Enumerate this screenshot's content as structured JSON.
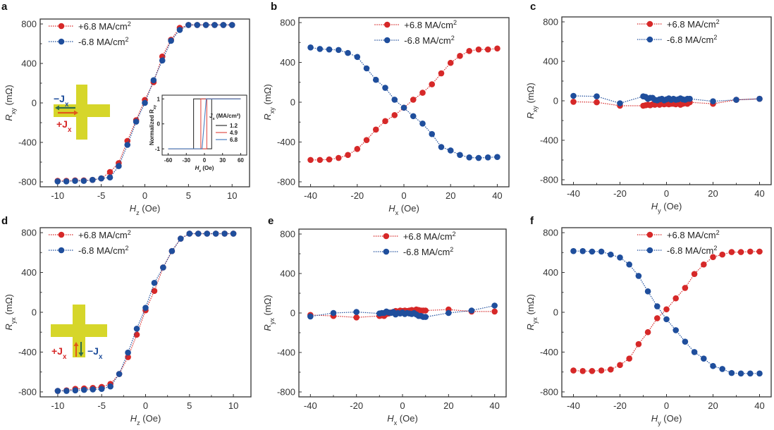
{
  "figure": {
    "colors": {
      "pos": "#d62828",
      "neg": "#1f4e9c",
      "axis": "#333333",
      "cross": "#d6d62a",
      "inset_1_2": "#333333",
      "inset_4_9": "#e0504a",
      "inset_6_8": "#4a7fc0",
      "arrow_green": "#2f6b4f",
      "arrow_orange": "#e05a1a"
    },
    "schematic_a": {
      "minus_label": "−J",
      "minus_sub": "x",
      "plus_label": "+J",
      "plus_sub": "x"
    },
    "schematic_d": {
      "plus_label": "+J",
      "plus_sub": "x",
      "minus_label": "−J",
      "minus_sub": "x"
    }
  },
  "chart_data": [
    {
      "id": "a",
      "type": "line",
      "panel_label": "a",
      "xlabel_main": "H",
      "xlabel_sub": "z",
      "xlabel_unit": " (Oe)",
      "ylabel_main": "R",
      "ylabel_sub": "xy",
      "ylabel_unit": " (mΩ)",
      "xlim": [
        -12,
        12
      ],
      "ylim": [
        -850,
        850
      ],
      "xticks": [
        -10,
        -5,
        0,
        5,
        10
      ],
      "yticks": [
        -800,
        -400,
        0,
        400,
        800
      ],
      "legend": [
        "+6.8 MA/cm",
        "-6.8 MA/cm"
      ],
      "legend_sup": "2",
      "legend_position": "top-left",
      "series": [
        {
          "name": "+6.8 MA/cm2",
          "color_key": "pos",
          "x": [
            -10,
            -9,
            -8,
            -7,
            -6,
            -5,
            -4,
            -3,
            -2,
            -1,
            0,
            1,
            2,
            3,
            4,
            5,
            6,
            7,
            8,
            9,
            10
          ],
          "y": [
            -790,
            -790,
            -785,
            -785,
            -780,
            -765,
            -700,
            -610,
            -385,
            -175,
            30,
            210,
            470,
            640,
            760,
            790,
            790,
            790,
            790,
            790,
            790
          ]
        },
        {
          "name": "-6.8 MA/cm2",
          "color_key": "neg",
          "x": [
            -10,
            -9,
            -8,
            -7,
            -6,
            -5,
            -4,
            -3,
            -2,
            -1,
            0,
            1,
            2,
            3,
            4,
            5,
            6,
            7,
            8,
            9,
            10
          ],
          "y": [
            -795,
            -795,
            -790,
            -790,
            -780,
            -765,
            -755,
            -640,
            -425,
            -190,
            0,
            230,
            430,
            630,
            740,
            790,
            790,
            790,
            790,
            790,
            790
          ]
        }
      ],
      "inset": {
        "xlabel_main": "H",
        "xlabel_sub": "z",
        "xlabel_unit": " (Oe)",
        "ylabel": "Normalized R",
        "ylabel_sub": "xy",
        "xlim": [
          -70,
          70
        ],
        "ylim": [
          -1.25,
          1.15
        ],
        "xticks": [
          -60,
          -30,
          0,
          30,
          60
        ],
        "yticks": [
          -1,
          0,
          1
        ],
        "legend_title": "J",
        "legend_title_sub": "x",
        "legend_title_unit": " (MA/cm²)",
        "series": [
          {
            "name": "1.2",
            "color_key": "inset_1_2",
            "x": [
              -60,
              -18,
              -18,
              12,
              12,
              60,
              12,
              12,
              -18,
              -18,
              -60
            ],
            "y": [
              -1,
              -1,
              1,
              1,
              1,
              1,
              1,
              -1,
              -1,
              -1,
              -1
            ]
          },
          {
            "name": "4.9",
            "color_key": "inset_4_9",
            "x": [
              -60,
              -6,
              -6,
              4,
              4,
              60,
              4,
              4,
              -6,
              -6,
              -60
            ],
            "y": [
              -1,
              -1,
              1,
              1,
              1,
              1,
              1,
              -1,
              -1,
              -1,
              -1
            ]
          },
          {
            "name": "6.8",
            "color_key": "inset_6_8",
            "x": [
              -60,
              -4,
              3,
              60
            ],
            "y": [
              -1,
              -1,
              1,
              1
            ]
          }
        ]
      }
    },
    {
      "id": "b",
      "type": "line",
      "panel_label": "b",
      "xlabel_main": "H",
      "xlabel_sub": "x",
      "xlabel_unit": " (Oe)",
      "ylabel_main": "R",
      "ylabel_sub": "xy",
      "ylabel_unit": " (mΩ)",
      "xlim": [
        -45,
        45
      ],
      "ylim": [
        -850,
        850
      ],
      "xticks": [
        -40,
        -20,
        0,
        20,
        40
      ],
      "yticks": [
        -800,
        -400,
        0,
        400,
        800
      ],
      "legend": [
        "+6.8 MA/cm",
        "-6.8 MA/cm"
      ],
      "legend_sup": "2",
      "legend_position": "top-center",
      "series": [
        {
          "name": "+6.8 MA/cm2",
          "color_key": "pos",
          "x": [
            -40,
            -36,
            -32,
            -28,
            -24,
            -20,
            -16,
            -12,
            -8,
            -4,
            0,
            4,
            8,
            12,
            16,
            20,
            24,
            28,
            32,
            36,
            40
          ],
          "y": [
            -580,
            -580,
            -575,
            -560,
            -530,
            -470,
            -380,
            -275,
            -190,
            -130,
            -55,
            25,
            95,
            180,
            290,
            395,
            465,
            515,
            530,
            530,
            540
          ]
        },
        {
          "name": "-6.8 MA/cm2",
          "color_key": "neg",
          "x": [
            -40,
            -36,
            -32,
            -28,
            -24,
            -20,
            -16,
            -12,
            -8,
            -4,
            0,
            4,
            8,
            12,
            16,
            20,
            24,
            28,
            32,
            36,
            40
          ],
          "y": [
            550,
            535,
            530,
            525,
            495,
            455,
            340,
            225,
            145,
            25,
            -55,
            -140,
            -215,
            -320,
            -450,
            -485,
            -530,
            -555,
            -560,
            -555,
            -550
          ]
        }
      ]
    },
    {
      "id": "c",
      "type": "line",
      "panel_label": "c",
      "xlabel_main": "H",
      "xlabel_sub": "y",
      "xlabel_unit": " (Oe)",
      "ylabel_main": "R",
      "ylabel_sub": "xy",
      "ylabel_unit": " (mΩ)",
      "xlim": [
        -45,
        45
      ],
      "ylim": [
        -850,
        850
      ],
      "xticks": [
        -40,
        -20,
        0,
        20,
        40
      ],
      "yticks": [
        -800,
        -400,
        0,
        400,
        800
      ],
      "legend": [
        "+6.8 MA/cm",
        "-6.8 MA/cm"
      ],
      "legend_sup": "2",
      "legend_position": "top-center",
      "series": [
        {
          "name": "+6.8 MA/cm2",
          "color_key": "pos",
          "x": [
            -40,
            -30,
            -20,
            -10,
            -9,
            -8,
            -7,
            -6,
            -5,
            -4,
            -3,
            -2,
            -1,
            0,
            1,
            2,
            3,
            4,
            5,
            6,
            7,
            8,
            9,
            10,
            20,
            30,
            40
          ],
          "y": [
            -10,
            -15,
            -50,
            -50,
            -45,
            -40,
            -45,
            -35,
            -40,
            -30,
            -40,
            -30,
            -35,
            -30,
            -35,
            -30,
            -30,
            -35,
            -25,
            -40,
            -30,
            -25,
            -30,
            -15,
            -30,
            10,
            20
          ]
        },
        {
          "name": "-6.8 MA/cm2",
          "color_key": "neg",
          "x": [
            -40,
            -30,
            -20,
            -10,
            -9,
            -8,
            -7,
            -6,
            -5,
            -4,
            -3,
            -2,
            -1,
            0,
            1,
            2,
            3,
            4,
            5,
            6,
            7,
            8,
            9,
            10,
            20,
            30,
            40
          ],
          "y": [
            50,
            45,
            -25,
            45,
            40,
            20,
            30,
            30,
            10,
            5,
            15,
            20,
            5,
            15,
            25,
            10,
            20,
            10,
            15,
            25,
            15,
            10,
            20,
            20,
            -5,
            10,
            20
          ]
        }
      ]
    },
    {
      "id": "d",
      "type": "line",
      "panel_label": "d",
      "xlabel_main": "H",
      "xlabel_sub": "z",
      "xlabel_unit": " (Oe)",
      "ylabel_main": "R",
      "ylabel_sub": "yx",
      "ylabel_unit": " (mΩ)",
      "xlim": [
        -12,
        12
      ],
      "ylim": [
        -850,
        850
      ],
      "xticks": [
        -10,
        -5,
        0,
        5,
        10
      ],
      "yticks": [
        -800,
        -400,
        0,
        400,
        800
      ],
      "legend": [
        "+6.8 MA/cm",
        "-6.8 MA/cm"
      ],
      "legend_sup": "2",
      "legend_position": "top-left",
      "series": [
        {
          "name": "+6.8 MA/cm2",
          "color_key": "pos",
          "x": [
            -10,
            -9,
            -8,
            -7,
            -6,
            -5,
            -4,
            -3,
            -2,
            -1,
            0,
            1,
            2,
            3,
            4,
            5,
            6,
            7,
            8,
            9,
            10
          ],
          "y": [
            -790,
            -785,
            -770,
            -765,
            -760,
            -750,
            -720,
            -620,
            -450,
            -225,
            20,
            215,
            450,
            615,
            740,
            790,
            790,
            790,
            790,
            790,
            790
          ]
        },
        {
          "name": "-6.8 MA/cm2",
          "color_key": "neg",
          "x": [
            -10,
            -9,
            -8,
            -7,
            -6,
            -5,
            -4,
            -3,
            -2,
            -1,
            0,
            1,
            2,
            3,
            4,
            5,
            6,
            7,
            8,
            9,
            10
          ],
          "y": [
            -790,
            -790,
            -785,
            -780,
            -775,
            -770,
            -745,
            -620,
            -405,
            -165,
            45,
            295,
            450,
            615,
            740,
            790,
            790,
            790,
            790,
            790,
            790
          ]
        }
      ]
    },
    {
      "id": "e",
      "type": "line",
      "panel_label": "e",
      "xlabel_main": "H",
      "xlabel_sub": "x",
      "xlabel_unit": " (Oe)",
      "ylabel_main": "R",
      "ylabel_sub": "yx",
      "ylabel_unit": " (mΩ)",
      "xlim": [
        -45,
        45
      ],
      "ylim": [
        -850,
        850
      ],
      "xticks": [
        -40,
        -20,
        0,
        20,
        40
      ],
      "yticks": [
        -800,
        -400,
        0,
        400,
        800
      ],
      "legend": [
        "+6.8 MA/cm",
        "-6.8 MA/cm"
      ],
      "legend_sup": "2",
      "legend_position": "top-center",
      "series": [
        {
          "name": "+6.8 MA/cm2",
          "color_key": "pos",
          "x": [
            -40,
            -30,
            -20,
            -10,
            -9,
            -8,
            -7,
            -6,
            -5,
            -4,
            -3,
            -2,
            -1,
            0,
            1,
            2,
            3,
            4,
            5,
            6,
            7,
            8,
            9,
            10,
            20,
            30,
            40
          ],
          "y": [
            -20,
            -30,
            -45,
            -30,
            -25,
            -30,
            -10,
            -5,
            5,
            10,
            20,
            15,
            25,
            20,
            25,
            20,
            25,
            30,
            25,
            35,
            30,
            25,
            25,
            25,
            35,
            15,
            15
          ]
        },
        {
          "name": "-6.8 MA/cm2",
          "color_key": "neg",
          "x": [
            -40,
            -30,
            -20,
            -10,
            -9,
            -8,
            -7,
            -6,
            -5,
            -4,
            -3,
            -2,
            -1,
            0,
            1,
            2,
            3,
            4,
            5,
            6,
            7,
            8,
            9,
            10,
            20,
            30,
            40
          ],
          "y": [
            -35,
            0,
            10,
            -5,
            0,
            0,
            15,
            5,
            0,
            10,
            -15,
            0,
            -5,
            5,
            -10,
            0,
            -5,
            -10,
            0,
            -15,
            -30,
            -30,
            -40,
            -40,
            0,
            25,
            75
          ]
        }
      ]
    },
    {
      "id": "f",
      "type": "line",
      "panel_label": "f",
      "xlabel_main": "H",
      "xlabel_sub": "y",
      "xlabel_unit": " (Oe)",
      "ylabel_main": "R",
      "ylabel_sub": "yx",
      "ylabel_unit": " (mΩ)",
      "xlim": [
        -45,
        45
      ],
      "ylim": [
        -850,
        850
      ],
      "xticks": [
        -40,
        -20,
        0,
        20,
        40
      ],
      "yticks": [
        -800,
        -400,
        0,
        400,
        800
      ],
      "legend": [
        "+6.8 MA/cm",
        "-6.8 MA/cm"
      ],
      "legend_sup": "2",
      "legend_position": "top-center",
      "series": [
        {
          "name": "+6.8 MA/cm2",
          "color_key": "pos",
          "x": [
            -40,
            -36,
            -32,
            -28,
            -24,
            -20,
            -16,
            -12,
            -8,
            -4,
            0,
            4,
            8,
            12,
            16,
            20,
            24,
            28,
            32,
            36,
            40
          ],
          "y": [
            -585,
            -590,
            -590,
            -585,
            -575,
            -530,
            -465,
            -320,
            -200,
            -60,
            30,
            140,
            245,
            385,
            480,
            555,
            580,
            605,
            605,
            610,
            610
          ]
        },
        {
          "name": "-6.8 MA/cm2",
          "color_key": "neg",
          "x": [
            -40,
            -36,
            -32,
            -28,
            -24,
            -20,
            -16,
            -12,
            -8,
            -4,
            0,
            4,
            8,
            12,
            16,
            20,
            24,
            28,
            32,
            36,
            40
          ],
          "y": [
            615,
            615,
            610,
            610,
            580,
            550,
            480,
            365,
            210,
            60,
            -70,
            -180,
            -295,
            -400,
            -465,
            -540,
            -570,
            -610,
            -615,
            -615,
            -615
          ]
        }
      ]
    }
  ]
}
